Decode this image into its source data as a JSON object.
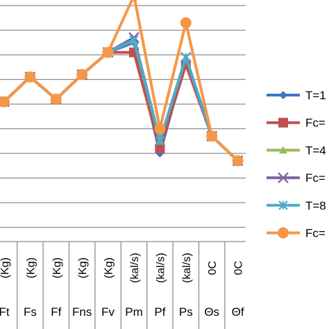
{
  "chart_data": {
    "type": "line",
    "categories": [
      "Ft",
      "Fs",
      "Ff",
      "Fns",
      "Fv",
      "Pm",
      "Pf",
      "Ps",
      "Θs",
      "Θf"
    ],
    "units": [
      "(Kg)",
      "(Kg)",
      "(Kg)",
      "(Kg)",
      "(Kg)",
      "(kal/s)",
      "(kal/s)",
      "(kal/s)",
      "0C",
      "0C"
    ],
    "ylim": [
      0,
      10
    ],
    "grid": true,
    "legend_position": "right",
    "series": [
      {
        "name": "T=1",
        "color": "#4472C4",
        "marker": "diamond",
        "values": [
          6.1,
          7.1,
          6.2,
          7.2,
          8.1,
          8.5,
          4.0,
          7.8,
          4.7,
          3.7
        ]
      },
      {
        "name": "Fc=",
        "color": "#C0504D",
        "marker": "square",
        "values": [
          6.1,
          7.1,
          6.2,
          7.2,
          8.1,
          8.1,
          4.2,
          7.6,
          4.7,
          3.7
        ]
      },
      {
        "name": "T=4",
        "color": "#9BBB59",
        "marker": "triangle",
        "values": [
          6.1,
          7.1,
          6.2,
          7.2,
          8.1,
          8.6,
          4.5,
          7.9,
          4.7,
          3.7
        ]
      },
      {
        "name": "Fc=",
        "color": "#8064A2",
        "marker": "x",
        "values": [
          6.1,
          7.1,
          6.2,
          7.2,
          8.1,
          8.7,
          4.5,
          7.9,
          4.7,
          3.7
        ]
      },
      {
        "name": "T=8",
        "color": "#4BACC6",
        "marker": "asterisk",
        "values": [
          6.1,
          7.1,
          6.2,
          7.2,
          8.1,
          8.6,
          4.5,
          7.9,
          4.7,
          3.7
        ]
      },
      {
        "name": "Fc=",
        "color": "#F79646",
        "marker": "circle",
        "values": [
          6.1,
          7.1,
          6.2,
          7.2,
          8.1,
          10.4,
          5.0,
          9.3,
          4.7,
          3.7
        ]
      }
    ]
  }
}
